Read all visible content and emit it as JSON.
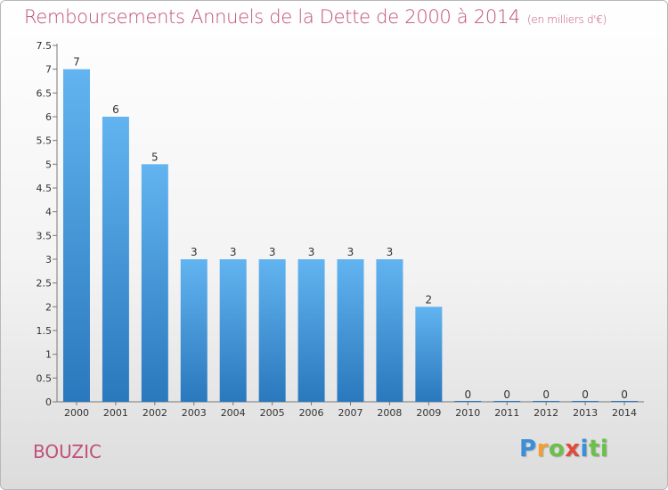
{
  "header": {
    "title": "Remboursements Annuels de la Dette de 2000 à 2014",
    "unit": "(en milliers d'€)"
  },
  "footer": {
    "commune": "BOUZIC",
    "logo_letters": [
      "P",
      "r",
      "o",
      "x",
      "i",
      "ti"
    ]
  },
  "colors": {
    "title": "#c0507a",
    "bar_top": "#62b4f0",
    "bar_bottom": "#2a78bd"
  },
  "chart_data": {
    "type": "bar",
    "categories": [
      "2000",
      "2001",
      "2002",
      "2003",
      "2004",
      "2005",
      "2006",
      "2007",
      "2008",
      "2009",
      "2010",
      "2011",
      "2012",
      "2013",
      "2014"
    ],
    "values": [
      7,
      6,
      5,
      3,
      3,
      3,
      3,
      3,
      3,
      2,
      0,
      0,
      0,
      0,
      0
    ],
    "value_labels": [
      "7",
      "6",
      "5",
      "3",
      "3",
      "3",
      "3",
      "3",
      "3",
      "2",
      "0",
      "0",
      "0",
      "0",
      "0"
    ],
    "ylim": [
      0,
      7.5
    ],
    "yticks": [
      "0",
      "0.5",
      "1",
      "1.5",
      "2",
      "2.5",
      "3",
      "3.5",
      "4",
      "4.5",
      "5",
      "5.5",
      "6",
      "6.5",
      "7",
      "7.5"
    ],
    "ytick_values": [
      0,
      0.5,
      1,
      1.5,
      2,
      2.5,
      3,
      3.5,
      4,
      4.5,
      5,
      5.5,
      6,
      6.5,
      7,
      7.5
    ],
    "grid": false,
    "legend": "none"
  }
}
